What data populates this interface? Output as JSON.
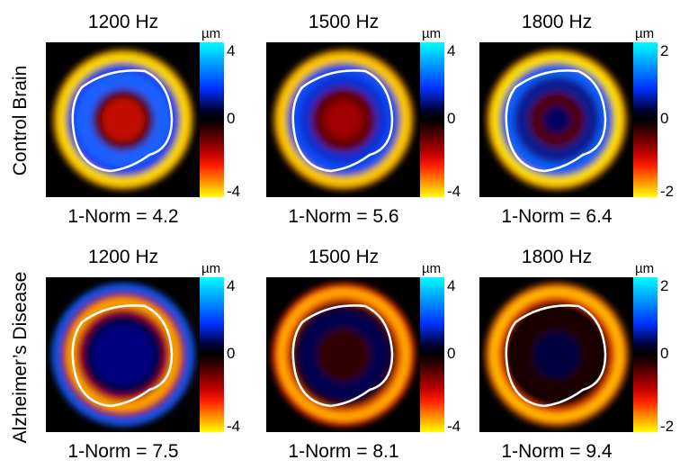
{
  "rows": [
    {
      "label": "Control Brain",
      "panels": [
        {
          "title": "1200 Hz",
          "unit": "µm",
          "ticks": [
            "4",
            "0",
            "-4"
          ],
          "norm": "1-Norm = 4.2"
        },
        {
          "title": "1500 Hz",
          "unit": "µm",
          "ticks": [
            "4",
            "0",
            "-4"
          ],
          "norm": "1-Norm = 5.6"
        },
        {
          "title": "1800 Hz",
          "unit": "µm",
          "ticks": [
            "2",
            "0",
            "-2"
          ],
          "norm": "1-Norm = 6.4"
        }
      ]
    },
    {
      "label": "Alzheimer’s Disease",
      "panels": [
        {
          "title": "1200 Hz",
          "unit": "µm",
          "ticks": [
            "4",
            "0",
            "-4"
          ],
          "norm": "1-Norm = 7.5"
        },
        {
          "title": "1500 Hz",
          "unit": "µm",
          "ticks": [
            "4",
            "0",
            "-4"
          ],
          "norm": "1-Norm = 8.1"
        },
        {
          "title": "1800 Hz",
          "unit": "µm",
          "ticks": [
            "2",
            "0",
            "-2"
          ],
          "norm": "1-Norm = 9.4"
        }
      ]
    }
  ],
  "chart_data": {
    "type": "heatmap",
    "row_labels": [
      "Control Brain",
      "Alzheimer’s Disease"
    ],
    "column_labels": [
      "1200 Hz",
      "1500 Hz",
      "1800 Hz"
    ],
    "colorbar_unit": "µm",
    "colorbar_ranges": [
      [
        -4,
        4
      ],
      [
        -4,
        4
      ],
      [
        -2,
        2
      ]
    ],
    "norm_values": [
      [
        4.2,
        5.6,
        6.4
      ],
      [
        7.5,
        8.1,
        9.4
      ]
    ]
  }
}
